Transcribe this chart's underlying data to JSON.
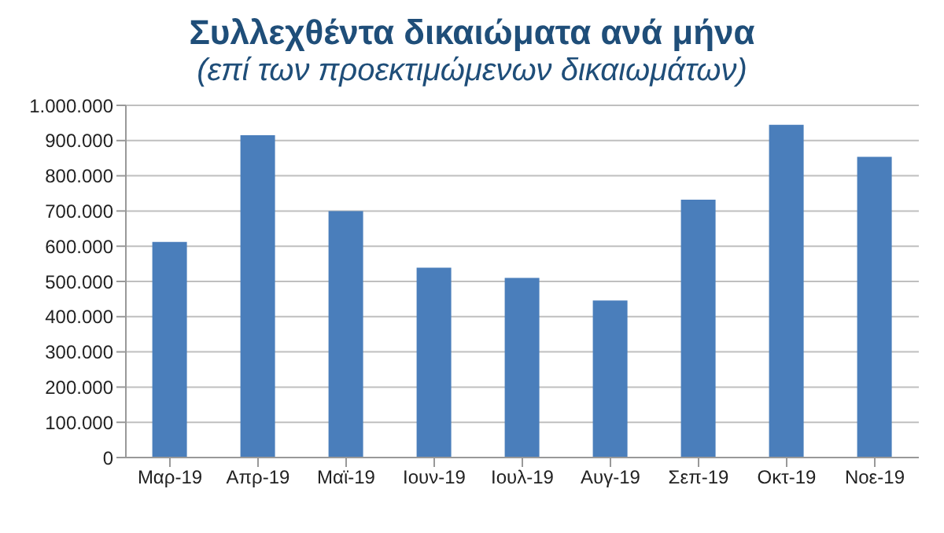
{
  "chart_data": {
    "type": "bar",
    "title": "Συλλεχθέντα δικαιώματα ανά μήνα",
    "subtitle": "(επί των προεκτιμώμενων δικαιωμάτων)",
    "categories": [
      "Μαρ-19",
      "Απρ-19",
      "Μαϊ-19",
      "Ιουν-19",
      "Ιουλ-19",
      "Αυγ-19",
      "Σεπ-19",
      "Οκτ-19",
      "Νοε-19"
    ],
    "values": [
      612000,
      915000,
      700000,
      539000,
      510000,
      446000,
      732000,
      945000,
      854000
    ],
    "color": "#4a7ebb",
    "ylim": [
      0,
      1000000
    ],
    "yticks": [
      0,
      {
        "value": 100000,
        "label": "100.000"
      },
      {
        "value": 200000,
        "label": "200.000"
      },
      {
        "value": 300000,
        "label": "300.000"
      },
      {
        "value": 400000,
        "label": "400.000"
      },
      {
        "value": 500000,
        "label": "500.000"
      },
      {
        "value": 600000,
        "label": "600.000"
      },
      {
        "value": 700000,
        "label": "700.000"
      },
      {
        "value": 800000,
        "label": "800.000"
      },
      {
        "value": 900000,
        "label": "900.000"
      },
      {
        "value": 1000000,
        "label": "1.000.000"
      }
    ],
    "grid": "y"
  }
}
